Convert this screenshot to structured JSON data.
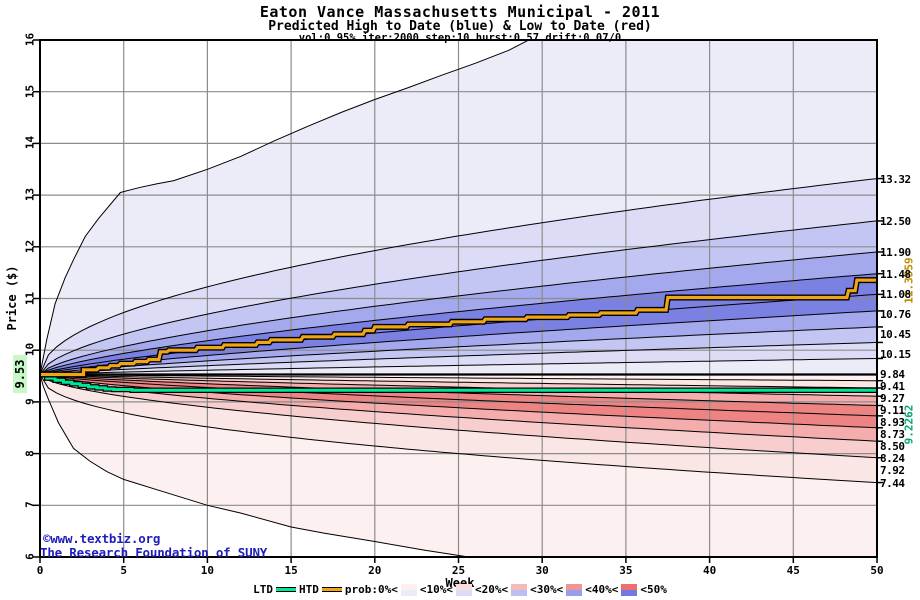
{
  "chart_data": {
    "type": "area",
    "title": "Eaton Vance Massachusetts Municipal - 2011",
    "subtitle": "Predicted High to Date (blue) &  Low to Date (red)",
    "params_line": "vol:0.95% iter:2000 step:10 hurst:0.57 drift:0.07/0",
    "xlabel": "Week",
    "ylabel": "Price ($)",
    "x_range": [
      0,
      50
    ],
    "y_range": [
      6,
      16
    ],
    "x_ticks": [
      0,
      5,
      10,
      15,
      20,
      25,
      30,
      35,
      40,
      45,
      50
    ],
    "y_ticks": [
      6,
      7,
      8,
      9,
      10,
      11,
      12,
      13,
      14,
      15,
      16
    ],
    "grid": true,
    "legend_position": "bottom",
    "start_price": 9.53,
    "start_label": "9.53",
    "high_fan": {
      "outer_points": [
        [
          0,
          9.53
        ],
        [
          0.4,
          10.2
        ],
        [
          0.9,
          10.9
        ],
        [
          1.5,
          11.4
        ],
        [
          2,
          11.75
        ],
        [
          2.7,
          12.2
        ],
        [
          3.5,
          12.55
        ],
        [
          4.8,
          13.05
        ],
        [
          6,
          13.15
        ],
        [
          7,
          13.22
        ],
        [
          8,
          13.28
        ],
        [
          10,
          13.5
        ],
        [
          12,
          13.75
        ],
        [
          14,
          14.05
        ],
        [
          16,
          14.33
        ],
        [
          18,
          14.6
        ],
        [
          20,
          14.85
        ],
        [
          22,
          15.08
        ],
        [
          24,
          15.32
        ],
        [
          26,
          15.55
        ],
        [
          28,
          15.8
        ],
        [
          29.5,
          16.05
        ],
        [
          31,
          16.4
        ],
        [
          50,
          18.5
        ]
      ],
      "deciles": [
        {
          "label": "13.32",
          "end": 13.32,
          "shape": 0.5
        },
        {
          "label": "12.50",
          "end": 12.5,
          "shape": 0.58
        },
        {
          "label": "11.90",
          "end": 11.9,
          "shape": 0.64
        },
        {
          "label": "11.48",
          "end": 11.48,
          "shape": 0.68
        },
        {
          "label": "11.08",
          "end": 11.08,
          "shape": 0.72
        },
        {
          "label": "10.76",
          "end": 10.76,
          "shape": 0.75
        },
        {
          "label": "10.45",
          "end": 10.45,
          "shape": 0.78
        },
        {
          "label": "10.15",
          "end": 10.15,
          "shape": 0.8
        },
        {
          "label": "9.84",
          "end": 9.84,
          "shape": 0.82
        }
      ],
      "band_colors": [
        "#ececf9",
        "#dcdcf6",
        "#c3c6f3",
        "#a4a8ec",
        "#7b80e3",
        "#7b80e3",
        "#a4a8ec",
        "#c3c6f3",
        "#dcdcf6",
        "#ececf9"
      ]
    },
    "low_fan": {
      "outer_points": [
        [
          0,
          9.53
        ],
        [
          0.2,
          9.3
        ],
        [
          0.5,
          9.05
        ],
        [
          1.1,
          8.6
        ],
        [
          2,
          8.1
        ],
        [
          3,
          7.85
        ],
        [
          4,
          7.65
        ],
        [
          5,
          7.5
        ],
        [
          7,
          7.3
        ],
        [
          10,
          7.0
        ],
        [
          12,
          6.85
        ],
        [
          15,
          6.58
        ],
        [
          17,
          6.46
        ],
        [
          20,
          6.3
        ],
        [
          23,
          6.13
        ],
        [
          26,
          5.98
        ],
        [
          28,
          5.88
        ],
        [
          29,
          5.8
        ],
        [
          50,
          4.6
        ]
      ],
      "deciles": [
        {
          "label": "9.41",
          "end": 9.41,
          "shape": 0.85
        },
        {
          "label": "9.27",
          "end": 9.27,
          "shape": 0.8
        },
        {
          "label": "9.11",
          "end": 9.11,
          "shape": 0.78
        },
        {
          "label": "8.93",
          "end": 8.93,
          "shape": 0.75
        },
        {
          "label": "8.73",
          "end": 8.73,
          "shape": 0.72
        },
        {
          "label": "8.50",
          "end": 8.5,
          "shape": 0.68
        },
        {
          "label": "8.24",
          "end": 8.24,
          "shape": 0.64
        },
        {
          "label": "7.92",
          "end": 7.92,
          "shape": 0.58
        },
        {
          "label": "7.44",
          "end": 7.44,
          "shape": 0.45
        }
      ],
      "band_colors": [
        "#fdf2f2",
        "#fbe6e6",
        "#f8cdcd",
        "#f4acac",
        "#ee8383",
        "#ee8383",
        "#f4acac",
        "#f8cdcd",
        "#fbe6e6",
        "#fdf0f0"
      ]
    },
    "htd": {
      "name": "HTD",
      "final": 11.3559,
      "final_label": "11.3559",
      "color": "#f0a517",
      "steps": [
        [
          0,
          9.53
        ],
        [
          2.6,
          9.53
        ],
        [
          2.6,
          9.62
        ],
        [
          3.4,
          9.62
        ],
        [
          3.5,
          9.66
        ],
        [
          4.1,
          9.66
        ],
        [
          4.2,
          9.7
        ],
        [
          4.7,
          9.7
        ],
        [
          4.8,
          9.74
        ],
        [
          5.6,
          9.74
        ],
        [
          5.7,
          9.78
        ],
        [
          6.4,
          9.78
        ],
        [
          6.5,
          9.82
        ],
        [
          7.1,
          9.82
        ],
        [
          7.2,
          9.97
        ],
        [
          7.6,
          9.97
        ],
        [
          7.7,
          10.0
        ],
        [
          9.3,
          10.0
        ],
        [
          9.4,
          10.05
        ],
        [
          10.9,
          10.05
        ],
        [
          11,
          10.1
        ],
        [
          12.9,
          10.1
        ],
        [
          13,
          10.15
        ],
        [
          13.7,
          10.15
        ],
        [
          13.8,
          10.2
        ],
        [
          15.6,
          10.2
        ],
        [
          15.7,
          10.26
        ],
        [
          17.5,
          10.26
        ],
        [
          17.6,
          10.31
        ],
        [
          19.3,
          10.31
        ],
        [
          19.4,
          10.38
        ],
        [
          19.9,
          10.38
        ],
        [
          20,
          10.45
        ],
        [
          21.9,
          10.45
        ],
        [
          22,
          10.5
        ],
        [
          24.5,
          10.5
        ],
        [
          24.6,
          10.55
        ],
        [
          26.5,
          10.55
        ],
        [
          26.6,
          10.6
        ],
        [
          29,
          10.6
        ],
        [
          29.1,
          10.64
        ],
        [
          31.5,
          10.64
        ],
        [
          31.6,
          10.68
        ],
        [
          33.4,
          10.68
        ],
        [
          33.5,
          10.72
        ],
        [
          35.6,
          10.72
        ],
        [
          35.7,
          10.78
        ],
        [
          37.4,
          10.78
        ],
        [
          37.5,
          11.02
        ],
        [
          48.2,
          11.02
        ],
        [
          48.3,
          11.15
        ],
        [
          48.7,
          11.15
        ],
        [
          48.8,
          11.3559
        ],
        [
          50,
          11.3559
        ]
      ]
    },
    "ltd": {
      "name": "LTD",
      "final": 9.2262,
      "final_label": "9.2262",
      "color": "#00e596",
      "steps": [
        [
          0,
          9.53
        ],
        [
          0.4,
          9.53
        ],
        [
          0.4,
          9.46
        ],
        [
          0.9,
          9.46
        ],
        [
          0.9,
          9.42
        ],
        [
          1.4,
          9.42
        ],
        [
          1.4,
          9.38
        ],
        [
          1.9,
          9.38
        ],
        [
          1.9,
          9.35
        ],
        [
          2.4,
          9.35
        ],
        [
          2.4,
          9.32
        ],
        [
          2.9,
          9.32
        ],
        [
          2.9,
          9.29
        ],
        [
          3.4,
          9.29
        ],
        [
          3.4,
          9.27
        ],
        [
          3.9,
          9.27
        ],
        [
          3.9,
          9.25
        ],
        [
          4.4,
          9.25
        ],
        [
          4.4,
          9.24
        ],
        [
          5.5,
          9.24
        ],
        [
          5.5,
          9.2262
        ],
        [
          50,
          9.2262
        ]
      ]
    },
    "legend": {
      "ltd_label": "LTD",
      "htd_label": "HTD",
      "prob_label": "prob:0%<",
      "bands": [
        {
          "label": "<10%<",
          "red": "#fdf0f0",
          "blue": "#ececf9"
        },
        {
          "label": "<20%<",
          "red": "#fadcdc",
          "blue": "#dcdcf6"
        },
        {
          "label": "<30%<",
          "red": "#f5baba",
          "blue": "#bcbef2"
        },
        {
          "label": "<40%<",
          "red": "#f09494",
          "blue": "#9a9eea"
        },
        {
          "label": "<50%",
          "red": "#ed6f6f",
          "blue": "#7478e2"
        }
      ]
    },
    "watermark_line1": "©www.textbiz.org",
    "watermark_line2": "The Research Foundation of SUNY",
    "colors": {
      "grid": "#8c8c8c",
      "frame": "#000000",
      "boundary_line": "#000000",
      "htd_label_color": "#c08a00",
      "ltd_label_color": "#00a870",
      "start_label_bg": "#c8f7c8",
      "watermark": "#1d1dbe"
    }
  }
}
